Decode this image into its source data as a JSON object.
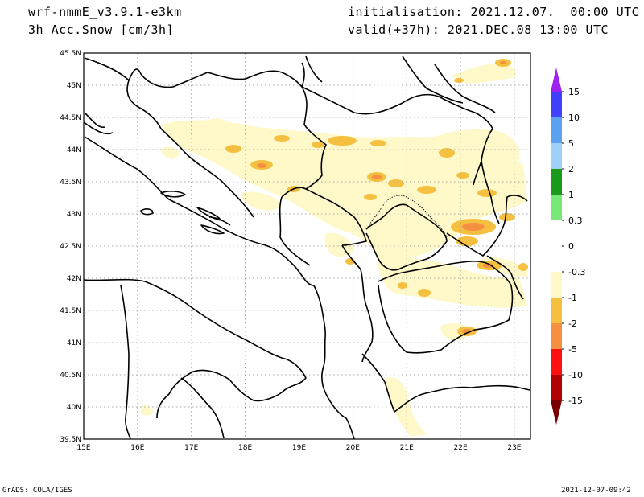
{
  "header": {
    "model": "wrf-nmmE_v3.9.1-e3km",
    "field": "3h Acc.Snow [cm/3h]",
    "init": "initialisation: 2021.12.07.  00:00 UTC",
    "valid": "valid(+37h): 2021.DEC.08 13:00 UTC"
  },
  "footer": {
    "left": "GrADS: COLA/IGES",
    "right": "2021-12-07-09:42"
  },
  "map": {
    "lon_range": [
      15,
      23.3
    ],
    "lat_range": [
      39.5,
      45.5
    ],
    "lon_ticks": [
      "15E",
      "16E",
      "17E",
      "18E",
      "19E",
      "20E",
      "21E",
      "22E",
      "23E"
    ],
    "lat_ticks": [
      "39.5N",
      "40N",
      "40.5N",
      "41N",
      "41.5N",
      "42N",
      "42.5N",
      "43N",
      "43.5N",
      "44N",
      "44.5N",
      "45N",
      "45.5N"
    ],
    "grid": "dotted"
  },
  "colorbar": {
    "labels": [
      "15",
      "10",
      "5",
      "2",
      "1",
      "0.3",
      "0",
      "-0.3",
      "-1",
      "-2",
      "-5",
      "-10",
      "-15"
    ],
    "colors": {
      "purple": "#a020f0",
      "blue": "#4040ff",
      "med_blue": "#5ca0f0",
      "light_blue": "#a0d0f8",
      "dark_green": "#1a9a1a",
      "light_green": "#78e878",
      "white": "#ffffff",
      "cream": "#fff8c8",
      "yellow": "#f5c040",
      "orange": "#f59040",
      "red": "#ff1010",
      "dark_red": "#b00000",
      "maroon": "#7a0000"
    }
  }
}
